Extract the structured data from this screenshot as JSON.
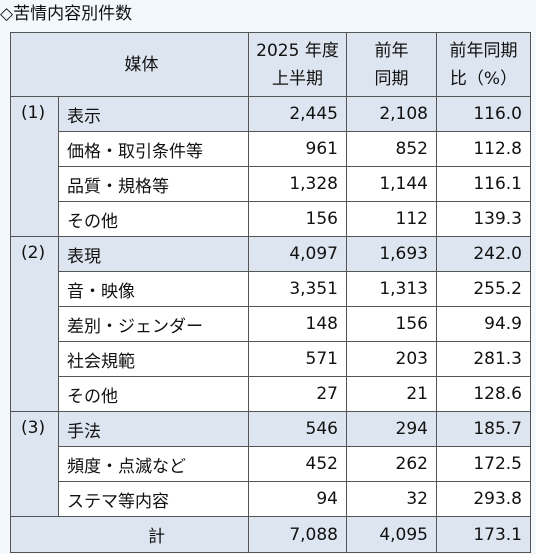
{
  "title": "◇苦情内容別件数",
  "header": {
    "media": "媒体",
    "col1_line1": "2025 年度",
    "col1_line2": "上半期",
    "col2_line1": "前年",
    "col2_line2": "同期",
    "col3_line1": "前年同期",
    "col3_line2": "比（%）"
  },
  "groups": [
    {
      "num": "(1)",
      "label": "表示",
      "v1": "2,445",
      "v2": "2,108",
      "v3": "116.0",
      "items": [
        {
          "label": "価格・取引条件等",
          "v1": "961",
          "v2": "852",
          "v3": "112.8"
        },
        {
          "label": "品質・規格等",
          "v1": "1,328",
          "v2": "1,144",
          "v3": "116.1"
        },
        {
          "label": "その他",
          "v1": "156",
          "v2": "112",
          "v3": "139.3"
        }
      ]
    },
    {
      "num": "(2)",
      "label": "表現",
      "v1": "4,097",
      "v2": "1,693",
      "v3": "242.0",
      "items": [
        {
          "label": "音・映像",
          "v1": "3,351",
          "v2": "1,313",
          "v3": "255.2"
        },
        {
          "label": "差別・ジェンダー",
          "v1": "148",
          "v2": "156",
          "v3": "94.9"
        },
        {
          "label": "社会規範",
          "v1": "571",
          "v2": "203",
          "v3": "281.3"
        },
        {
          "label": "その他",
          "v1": "27",
          "v2": "21",
          "v3": "128.6"
        }
      ]
    },
    {
      "num": "(3)",
      "label": "手法",
      "v1": "546",
      "v2": "294",
      "v3": "185.7",
      "items": [
        {
          "label": "頻度・点滅など",
          "v1": "452",
          "v2": "262",
          "v3": "172.5"
        },
        {
          "label": "ステマ等内容",
          "v1": "94",
          "v2": "32",
          "v3": "293.8"
        }
      ]
    }
  ],
  "total": {
    "label": "計",
    "v1": "7,088",
    "v2": "4,095",
    "v3": "173.1"
  }
}
